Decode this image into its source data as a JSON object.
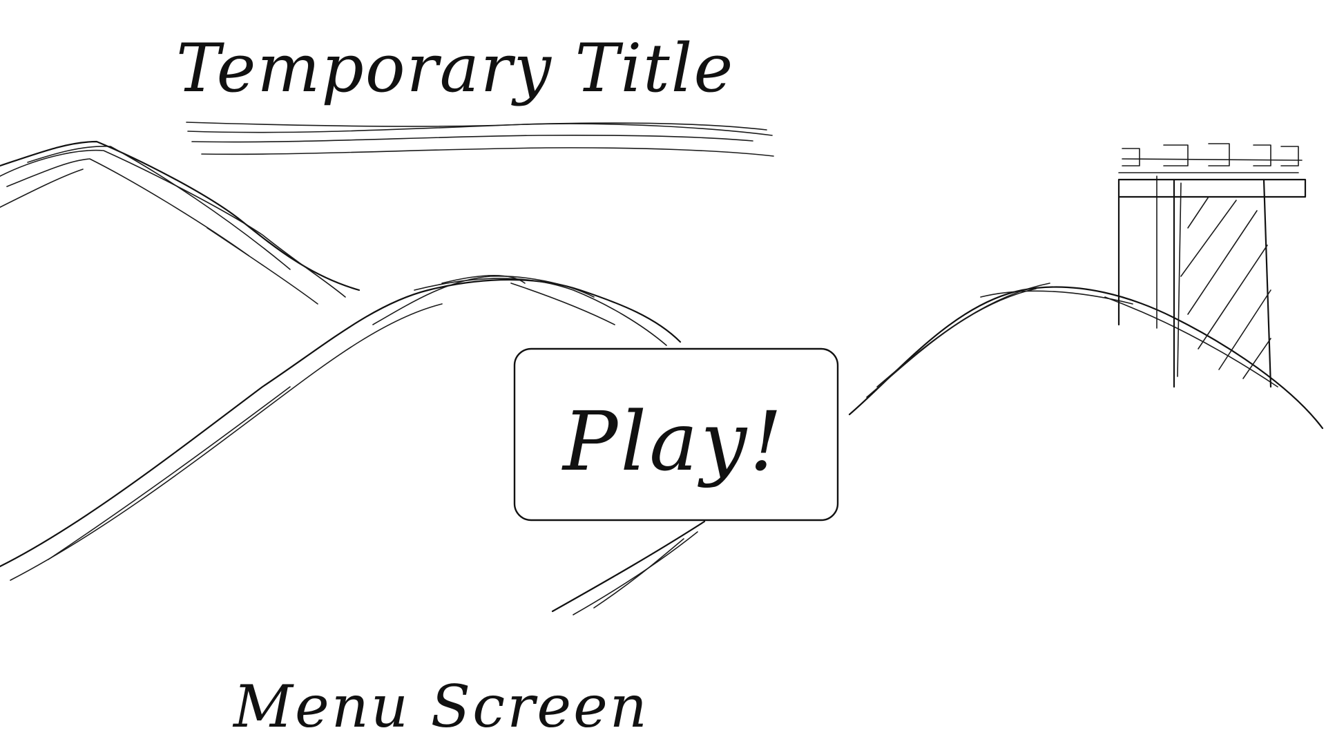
{
  "title": {
    "text": "Temporary Title"
  },
  "play_button": {
    "label": "Play!"
  },
  "caption": {
    "text": "Menu Screen"
  },
  "colors": {
    "ink": "#111111",
    "background": "#ffffff"
  },
  "scenery": {
    "hills": [
      "left-hill",
      "center-hill",
      "right-hill"
    ],
    "tower": "striped-tower"
  }
}
